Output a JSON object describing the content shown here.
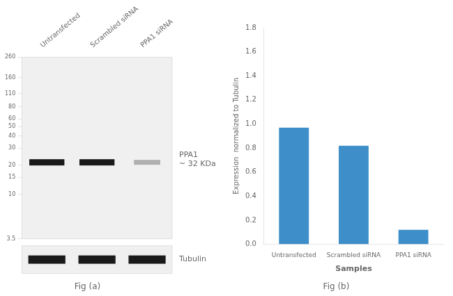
{
  "chart_data": [
    {
      "type": "blot",
      "title": "Fig (a)",
      "categories": [
        "Untransfected",
        "Scrambled siRNA",
        "PPA1 siRNA"
      ],
      "log": "y",
      "ylim": [
        3.5,
        260
      ],
      "yticks": [
        260,
        160,
        110,
        80,
        60,
        50,
        40,
        30,
        20,
        15,
        10,
        3.5
      ],
      "annotations": [
        "PPA1\n~ 32 KDa",
        "Tubulin"
      ],
      "colors": [
        "#1a1a1a",
        "#1a1a1a",
        "#b0b0b0"
      ]
    },
    {
      "type": "bar",
      "title": "Fig (b)",
      "categories": [
        "Untransfected",
        "Scrambled siRNA",
        "PPA1 siRNA"
      ],
      "values": [
        0.97,
        0.82,
        0.12
      ],
      "color": "#3d8ec9",
      "ylim": [
        0,
        1.8
      ],
      "yticks": [
        {
          "value": 0,
          "label": "0.0"
        },
        0.2,
        0.4,
        0.6,
        0.8,
        {
          "value": 1.0,
          "label": "1.0"
        },
        1.2,
        1.4,
        1.6,
        1.8
      ],
      "ylabel": "Expression  normalized to Tubulin",
      "xlabel": "Samples",
      "grid": false
    }
  ]
}
